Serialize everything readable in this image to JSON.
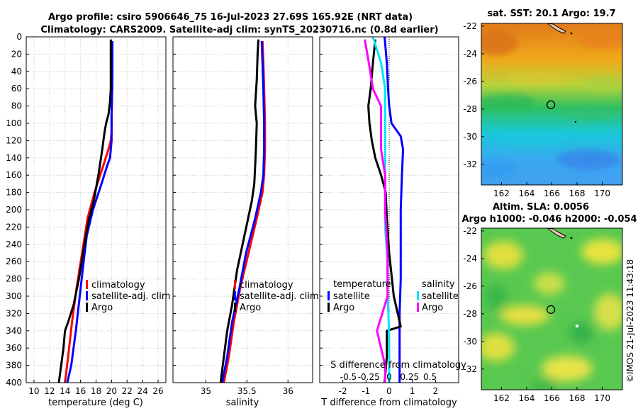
{
  "header": {
    "title_line1": "Argo profile: csiro 5906646_75 16-Jul-2023 27.69S 165.92E (NRT data)",
    "title_line2": "Climatology: CARS2009. Satellite-adj clim: synTS_20230716.nc (0.8d earlier)"
  },
  "colors": {
    "climatology": "#ff0000",
    "satellite": "#0000ff",
    "argo": "#000000",
    "sat_salinity": "#00e5ff",
    "argo_salinity": "#ff00ff"
  },
  "chart_data": [
    {
      "type": "line",
      "name": "temperature-profile",
      "xlabel": "temperature (deg C)",
      "ylabel": "",
      "xlim": [
        9,
        27
      ],
      "ylim": [
        400,
        0
      ],
      "xticks": [
        10,
        12,
        14,
        16,
        18,
        20,
        22,
        24,
        26
      ],
      "yticks": [
        0,
        20,
        40,
        60,
        80,
        100,
        120,
        140,
        160,
        180,
        200,
        220,
        240,
        260,
        280,
        300,
        320,
        340,
        360,
        380,
        400
      ],
      "legend": [
        "climatology",
        "satellite-adj. clim",
        "Argo"
      ],
      "series": [
        {
          "name": "climatology",
          "color": "#ff0000",
          "x": [
            20.1,
            20.1,
            20.0,
            20.0,
            19.9,
            19.6,
            18.9,
            17.8,
            16.9,
            16.2,
            15.5,
            14.9,
            14.4,
            14.0
          ],
          "depth": [
            5,
            50,
            90,
            110,
            120,
            130,
            150,
            180,
            210,
            250,
            290,
            330,
            370,
            400
          ]
        },
        {
          "name": "satellite-adj. clim",
          "color": "#0000ff",
          "x": [
            20.1,
            20.1,
            20.0,
            20.0,
            19.8,
            19.4,
            18.7,
            17.6,
            16.8,
            16.4,
            15.9,
            15.4,
            14.8,
            14.3
          ],
          "depth": [
            5,
            50,
            90,
            120,
            140,
            150,
            170,
            200,
            230,
            260,
            300,
            340,
            380,
            400
          ]
        },
        {
          "name": "Argo",
          "color": "#000000",
          "x": [
            19.9,
            19.9,
            19.9,
            19.8,
            19.6,
            19.3,
            19.1,
            18.8,
            18.3,
            17.7,
            17.1,
            16.5,
            15.8,
            15.1,
            14.4,
            14.0,
            13.8,
            13.5,
            13.2
          ],
          "depth": [
            3,
            30,
            60,
            75,
            90,
            100,
            110,
            130,
            160,
            190,
            210,
            240,
            280,
            310,
            330,
            340,
            360,
            380,
            400
          ]
        }
      ]
    },
    {
      "type": "line",
      "name": "salinity-profile",
      "xlabel": "salinity",
      "ylabel": "",
      "xlim": [
        34.6,
        36.3
      ],
      "ylim": [
        400,
        0
      ],
      "xticks": [
        35,
        35.5,
        36
      ],
      "xtick_labels": [
        "35",
        "35.5",
        "36"
      ],
      "legend": [
        "climatology",
        "satellite-adj. clim",
        "Argo"
      ],
      "series": [
        {
          "name": "climatology",
          "color": "#ff0000",
          "x": [
            35.69,
            35.7,
            35.71,
            35.72,
            35.72,
            35.71,
            35.69,
            35.62,
            35.52,
            35.42,
            35.34,
            35.28,
            35.22
          ],
          "depth": [
            5,
            30,
            60,
            100,
            130,
            160,
            180,
            210,
            250,
            290,
            330,
            370,
            400
          ]
        },
        {
          "name": "satellite-adj. clim",
          "color": "#0000ff",
          "x": [
            35.68,
            35.69,
            35.7,
            35.71,
            35.71,
            35.7,
            35.67,
            35.6,
            35.49,
            35.41,
            35.32,
            35.26,
            35.2
          ],
          "depth": [
            5,
            30,
            60,
            100,
            130,
            160,
            180,
            210,
            250,
            290,
            330,
            370,
            400
          ]
        },
        {
          "name": "Argo",
          "color": "#000000",
          "x": [
            35.64,
            35.63,
            35.62,
            35.6,
            35.62,
            35.61,
            35.6,
            35.59,
            35.56,
            35.47,
            35.38,
            35.32,
            35.26,
            35.22,
            35.18
          ],
          "depth": [
            3,
            20,
            50,
            80,
            100,
            130,
            150,
            170,
            190,
            230,
            270,
            310,
            340,
            370,
            400
          ]
        }
      ]
    },
    {
      "type": "line",
      "name": "difference-profile",
      "xlabel": "T difference from climatology",
      "secondary_xlabel": "S difference from climatology",
      "xlim": [
        -3,
        3
      ],
      "ylim": [
        400,
        0
      ],
      "xticks": [
        -2,
        -1,
        0,
        1,
        2
      ],
      "xtick_labels": [
        "-2",
        "-1",
        "0",
        "1",
        "2"
      ],
      "secondary_ticks": [
        -0.5,
        -0.25,
        0,
        0.25,
        0.5
      ],
      "secondary_tick_labels": [
        "-0.5",
        "-0.25",
        "0",
        "0.25",
        "0.5"
      ],
      "legend_temperature": {
        "title": "temperature",
        "items": [
          "satellite",
          "Argo"
        ]
      },
      "legend_salinity": {
        "title": "salinity",
        "items": [
          "satellite",
          "Argo"
        ]
      },
      "series": [
        {
          "name": "T satellite",
          "color": "#0000ff",
          "x": [
            -0.2,
            -0.1,
            -0.05,
            0.0,
            0.1,
            0.5,
            0.6,
            0.55,
            0.5,
            0.5,
            0.5,
            0.45,
            0.45,
            0.45
          ],
          "depth": [
            0,
            30,
            60,
            80,
            100,
            115,
            130,
            160,
            200,
            240,
            280,
            320,
            360,
            400
          ]
        },
        {
          "name": "T Argo",
          "color": "#000000",
          "x": [
            -0.6,
            -0.7,
            -0.8,
            -0.9,
            -0.85,
            -0.75,
            -0.6,
            -0.35,
            -0.15,
            -0.1,
            0.0,
            0.2,
            0.5,
            -0.1,
            -0.1,
            -0.2
          ],
          "depth": [
            3,
            30,
            60,
            80,
            100,
            120,
            140,
            160,
            180,
            210,
            250,
            300,
            335,
            340,
            370,
            400
          ]
        },
        {
          "name": "S satellite",
          "color": "#00e5ff",
          "x": [
            -0.2,
            -0.1,
            -0.05,
            -0.05,
            -0.05,
            -0.05,
            -0.05,
            -0.02,
            -0.02,
            -0.01,
            0.0,
            0.0,
            0.0
          ],
          "depth": [
            0,
            30,
            60,
            100,
            140,
            180,
            220,
            260,
            300,
            320,
            350,
            380,
            400
          ]
        },
        {
          "name": "S Argo",
          "color": "#ff00ff",
          "x": [
            -0.3,
            -0.25,
            -0.2,
            -0.1,
            -0.1,
            -0.1,
            -0.05,
            -0.05,
            -0.02,
            -0.02,
            -0.15,
            -0.1,
            -0.05,
            -0.05
          ],
          "depth": [
            3,
            30,
            60,
            80,
            100,
            130,
            160,
            200,
            250,
            300,
            340,
            360,
            380,
            400
          ]
        }
      ]
    },
    {
      "type": "heatmap",
      "name": "sst-map",
      "title": "sat. SST: 20.1 Argo: 19.7",
      "xticks": [
        162,
        164,
        166,
        168,
        170
      ],
      "yticks": [
        -22,
        -24,
        -26,
        -28,
        -30,
        -32
      ],
      "xlim": [
        160.4,
        171.6
      ],
      "ylim": [
        -33.5,
        -21.8
      ],
      "argo_lon": 165.92,
      "argo_lat": -27.69
    },
    {
      "type": "heatmap",
      "name": "sla-map",
      "title_line1": "Altim. SLA: 0.0056",
      "title_line2": "Argo h1000: -0.046 h2000: -0.054",
      "xticks": [
        162,
        164,
        166,
        168,
        170
      ],
      "yticks": [
        -22,
        -24,
        -26,
        -28,
        -30,
        -32
      ],
      "xlim": [
        160.4,
        171.6
      ],
      "ylim": [
        -33.5,
        -21.8
      ],
      "argo_lon": 165.92,
      "argo_lat": -27.69
    }
  ],
  "credit": "©IMOS 21-Jul-2023 11:43:18"
}
